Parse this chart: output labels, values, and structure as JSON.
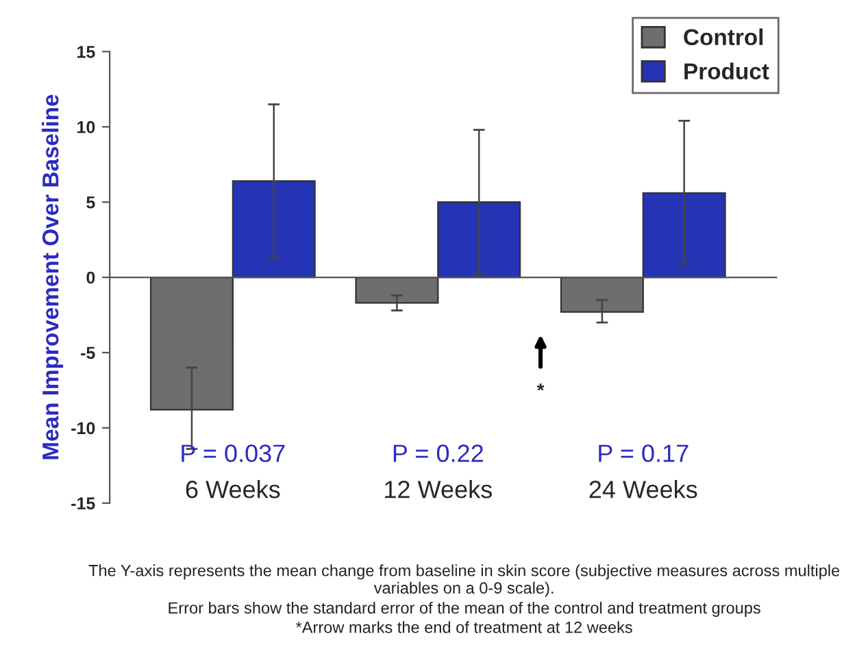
{
  "chart_data": {
    "type": "bar",
    "ylabel": "Mean Improvement Over Baseline",
    "categories": [
      "6 Weeks",
      "12 Weeks",
      "24 Weeks"
    ],
    "series": [
      {
        "name": "Control",
        "color": "#6e6e6e",
        "values": [
          -8.8,
          -1.7,
          -2.3
        ],
        "errors": [
          [
            -11.4,
            -6.0
          ],
          [
            -2.2,
            -1.2
          ],
          [
            -3.0,
            -1.5
          ]
        ]
      },
      {
        "name": "Product",
        "color": "#2434b4",
        "values": [
          6.4,
          5.0,
          5.6
        ],
        "errors": [
          [
            1.3,
            11.5
          ],
          [
            0.2,
            9.8
          ],
          [
            0.9,
            10.4
          ]
        ]
      }
    ],
    "ylim": [
      -15,
      15
    ],
    "yticks": [
      -15,
      -10,
      -5,
      0,
      5,
      10,
      15
    ],
    "legend": "top right",
    "annotations": [
      "P = 0.037",
      "P = 0.22",
      "P = 0.17",
      "*",
      "The Y-axis represents the mean change from baseline in skin score (subjective measures across multiple variables on a 0-9 scale).",
      "Error bars show the standard error of the mean of the control and treatment groups",
      "*Arrow marks the end of treatment at 12 weeks"
    ]
  }
}
